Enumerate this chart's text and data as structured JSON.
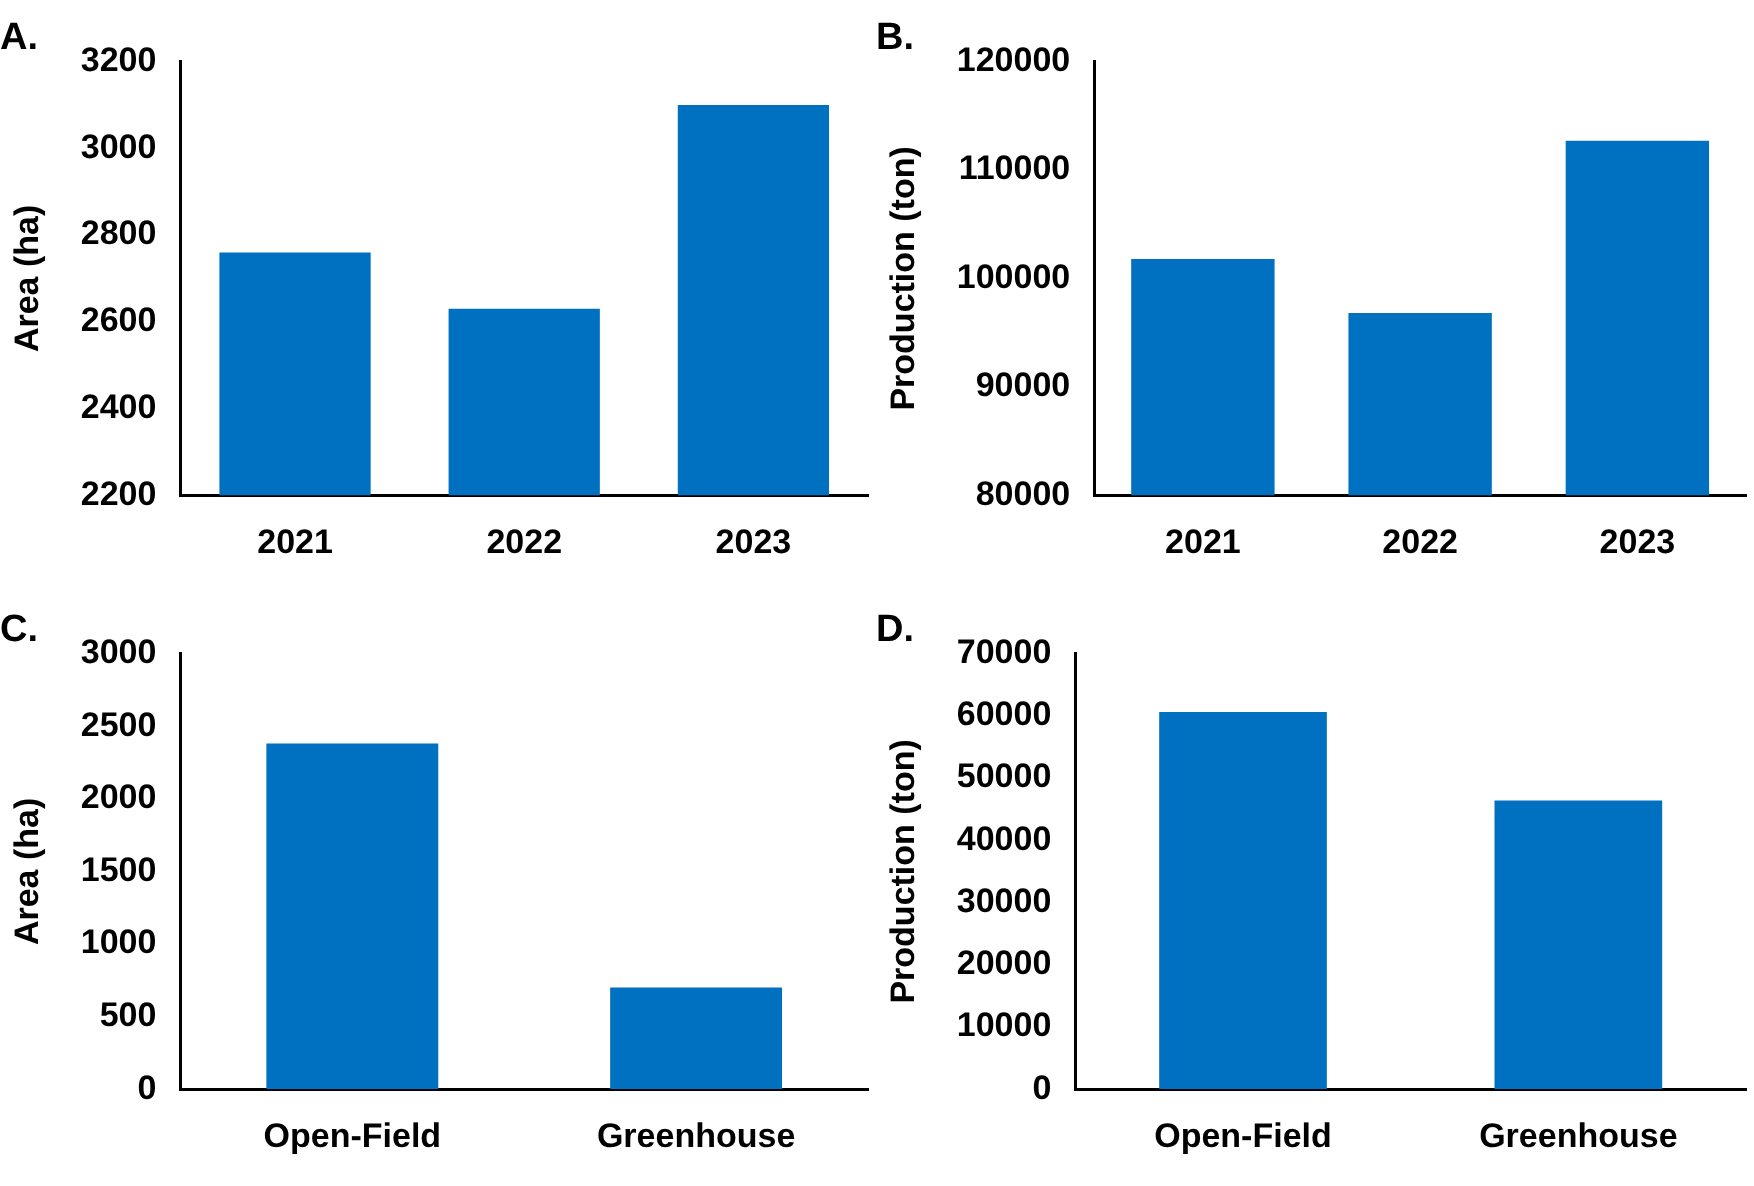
{
  "chart_data": [
    {
      "type": "bar",
      "title": "A.",
      "ylabel": "Area (ha)",
      "categories": [
        "2021",
        "2022",
        "2023"
      ],
      "values": [
        2760,
        2630,
        3100
      ],
      "color": "#0070c0",
      "ylim": [
        2200,
        3200
      ],
      "yticks": [
        2200,
        2400,
        2600,
        2800,
        3000,
        3200
      ],
      "grid": false,
      "legend": false
    },
    {
      "type": "bar",
      "title": "B.",
      "ylabel": "Production (ton)",
      "categories": [
        "2021",
        "2022",
        "2023"
      ],
      "values": [
        101800,
        96800,
        112700
      ],
      "color": "#0070c0",
      "ylim": [
        80000,
        120000
      ],
      "yticks": [
        80000,
        90000,
        100000,
        110000,
        120000
      ],
      "grid": false,
      "legend": false
    },
    {
      "type": "bar",
      "title": "C.",
      "ylabel": "Area (ha)",
      "categories": [
        "Open-Field",
        "Greenhouse"
      ],
      "values": [
        2380,
        700
      ],
      "color": "#0070c0",
      "ylim": [
        0,
        3000
      ],
      "yticks": [
        0,
        500,
        1000,
        1500,
        2000,
        2500,
        3000
      ],
      "grid": false,
      "legend": false
    },
    {
      "type": "bar",
      "title": "D.",
      "ylabel": "Production (ton)",
      "categories": [
        "Open-Field",
        "Greenhouse"
      ],
      "values": [
        60600,
        46400
      ],
      "color": "#0070c0",
      "ylim": [
        0,
        70000
      ],
      "yticks": [
        0,
        10000,
        20000,
        30000,
        40000,
        50000,
        60000,
        70000
      ],
      "grid": false,
      "legend": false
    }
  ]
}
